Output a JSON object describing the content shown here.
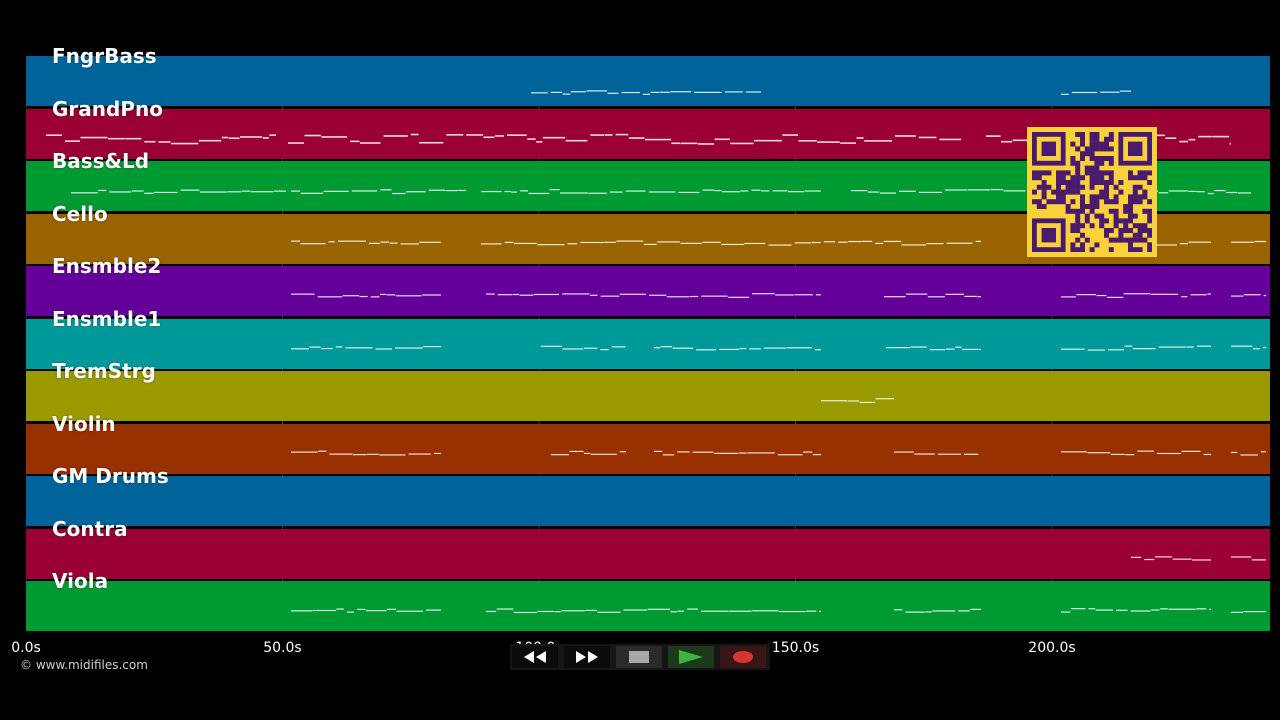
{
  "tracks": [
    {
      "name": "FngrBass",
      "color": "#00649a"
    },
    {
      "name": "GrandPno",
      "color": "#9a0033"
    },
    {
      "name": "Bass&Ld",
      "color": "#009a32"
    },
    {
      "name": "Cello",
      "color": "#996400"
    },
    {
      "name": "Ensmble2",
      "color": "#640099"
    },
    {
      "name": "Ensmble1",
      "color": "#009999"
    },
    {
      "name": "TremStrg",
      "color": "#999900"
    },
    {
      "name": "Violin",
      "color": "#993000"
    },
    {
      "name": "GM Drums",
      "color": "#00649a"
    },
    {
      "name": "Contra",
      "color": "#9a0033"
    },
    {
      "name": "Viola",
      "color": "#009a32"
    }
  ],
  "timeline": {
    "ticks": [
      "0.0s",
      "50.0s",
      "100.0s",
      "150.0s",
      "200.0s"
    ],
    "tick_values": [
      0,
      50,
      100,
      150,
      200
    ],
    "max_seconds": 242.5
  },
  "copyright": "© www.midifiles.com",
  "controls": {
    "rewind": "rewind-icon",
    "fast_forward": "fast-forward-icon",
    "stop": "stop-icon",
    "play": "play-icon",
    "record": "record-icon"
  },
  "qr_code": "qr-code"
}
